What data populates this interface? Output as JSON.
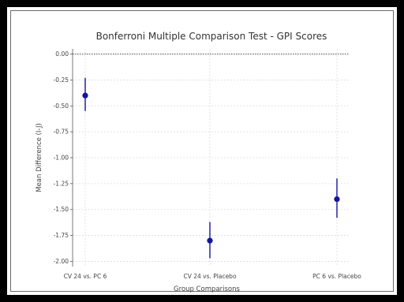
{
  "chart_data": {
    "type": "scatter",
    "title": "Bonferroni Multiple Comparison Test - GPI Scores",
    "xlabel": "Group Comparisons",
    "ylabel": "Mean Difference (I-J)",
    "categories": [
      "CV 24 vs. PC 6",
      "CV 24 vs. Placebo",
      "PC 6 vs. Placebo"
    ],
    "values": [
      -0.4,
      -1.8,
      -1.4
    ],
    "error_low": [
      -0.55,
      -1.97,
      -1.58
    ],
    "error_high": [
      -0.23,
      -1.62,
      -1.2
    ],
    "ylim": [
      -2.05,
      0.05
    ],
    "yticks": [
      0.0,
      -0.25,
      -0.5,
      -0.75,
      -1.0,
      -1.25,
      -1.5,
      -1.75,
      -2.0
    ],
    "ytick_labels": [
      "0.00",
      "-0.25",
      "-0.50",
      "-0.75",
      "-1.00",
      "-1.25",
      "-1.50",
      "-1.75",
      "-2.00"
    ],
    "reference_line": 0,
    "grid": true,
    "colors": {
      "marker": "#1414a0",
      "reference": "#888888",
      "grid": "#dddddd",
      "axis": "#555555"
    }
  }
}
